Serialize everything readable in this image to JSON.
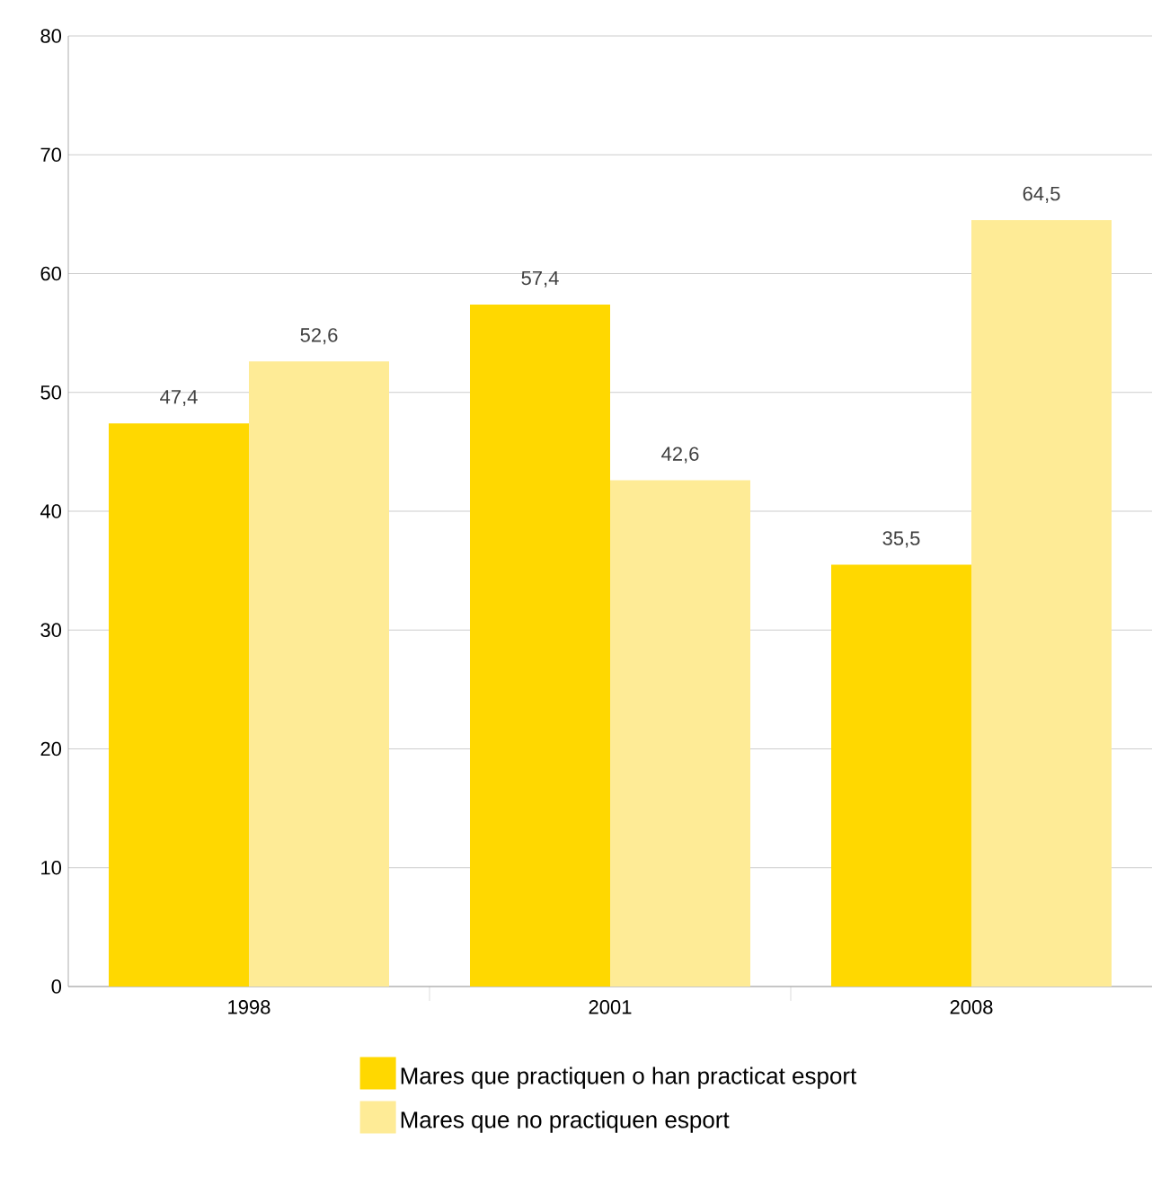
{
  "chart_data": {
    "type": "bar",
    "categories": [
      "1998",
      "2001",
      "2008"
    ],
    "series": [
      {
        "name": "Mares que practiquen o han practicat esport",
        "color": "#ffd800",
        "values": [
          47.4,
          57.4,
          35.5
        ],
        "value_labels": [
          "47,4",
          "57,4",
          "35,5"
        ]
      },
      {
        "name": "Mares que no practiquen esport",
        "color": "#feeb96",
        "values": [
          52.6,
          42.6,
          64.5
        ],
        "value_labels": [
          "52,6",
          "42,6",
          "64,5"
        ]
      }
    ],
    "ylim": [
      0,
      80
    ],
    "yticks": [
      0,
      10,
      20,
      30,
      40,
      50,
      60,
      70,
      80
    ],
    "grid": "y",
    "legend": "bottom"
  }
}
